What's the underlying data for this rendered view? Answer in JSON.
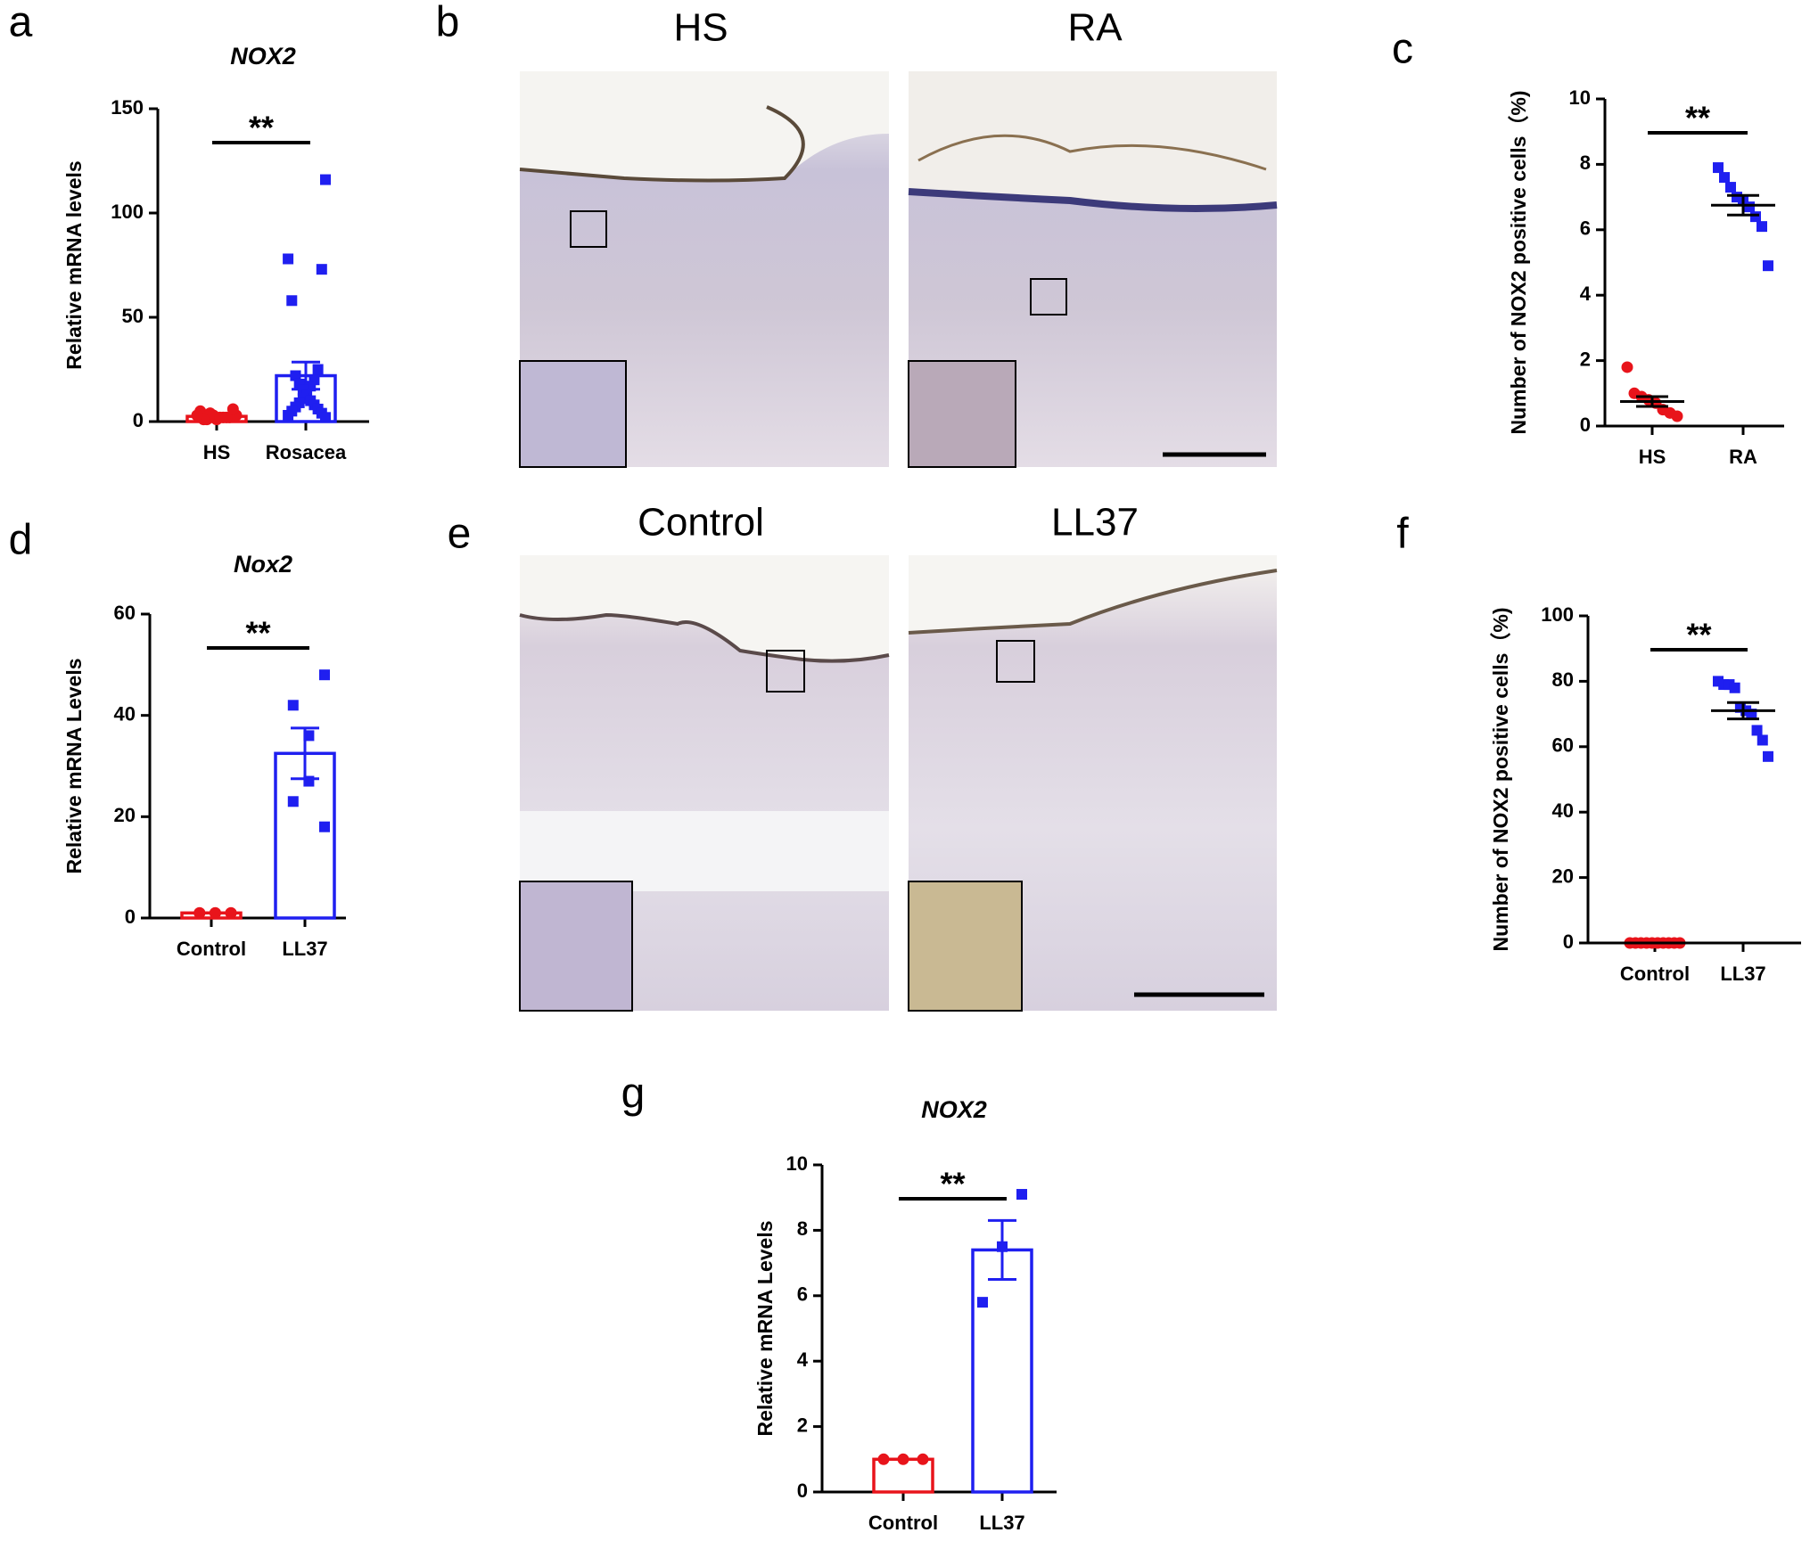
{
  "chart_data": [
    {
      "type": "bar",
      "label": "a",
      "title": "NOX2",
      "y_label": "Relative mRNA levels",
      "annotation": "**",
      "categories": [
        "HS",
        "Rosacea"
      ],
      "groups": [
        {
          "color": "#e8141b",
          "marker": "circle",
          "mean": 2.5,
          "sem": 0.5,
          "points": [
            3,
            5,
            2,
            1,
            2,
            3,
            1,
            2,
            4,
            2,
            1,
            6,
            3
          ]
        },
        {
          "color": "#1f1ff0",
          "marker": "square",
          "mean": 22,
          "sem": 6.5,
          "points": [
            116,
            78,
            73,
            58,
            25,
            22,
            20,
            18,
            17,
            15,
            13,
            12,
            11,
            10,
            9,
            8,
            7,
            6,
            5,
            4,
            3,
            2
          ]
        }
      ],
      "ylim": [
        0,
        150
      ],
      "yticks": [
        0,
        50,
        100,
        150
      ]
    },
    {
      "type": "dot",
      "label": "c",
      "y_label": "Number of NOX2 positive cells（%)",
      "annotation": "**",
      "categories": [
        "HS",
        "RA"
      ],
      "groups": [
        {
          "color": "#e8141b",
          "marker": "circle",
          "mean": 0.75,
          "sem": 0.15,
          "points": [
            1.8,
            1.0,
            0.9,
            0.8,
            0.7,
            0.5,
            0.4,
            0.3
          ]
        },
        {
          "color": "#1f1ff0",
          "marker": "square",
          "mean": 6.75,
          "sem": 0.3,
          "points": [
            7.9,
            7.6,
            7.3,
            7.0,
            6.9,
            6.7,
            6.4,
            6.1,
            4.9
          ]
        }
      ],
      "ylim": [
        0,
        10
      ],
      "yticks": [
        0,
        2,
        4,
        6,
        8,
        10
      ]
    },
    {
      "type": "bar",
      "label": "d",
      "title": "Nox2",
      "y_label": "Relative mRNA Levels",
      "annotation": "**",
      "categories": [
        "Control",
        "LL37"
      ],
      "groups": [
        {
          "color": "#e8141b",
          "marker": "circle",
          "mean": 1,
          "sem": 0,
          "points": [
            1,
            1,
            1,
            1,
            1,
            1
          ]
        },
        {
          "color": "#1f1ff0",
          "marker": "square",
          "mean": 32.5,
          "sem": 5,
          "points": [
            48,
            42,
            36,
            27,
            23,
            18
          ]
        }
      ],
      "ylim": [
        0,
        60
      ],
      "yticks": [
        0,
        20,
        40,
        60
      ]
    },
    {
      "type": "dot",
      "label": "f",
      "y_label": "Number of NOX2 positive cells（%)",
      "annotation": "**",
      "categories": [
        "Control",
        "LL37"
      ],
      "groups": [
        {
          "color": "#e8141b",
          "marker": "circle",
          "mean": 0,
          "sem": 0,
          "points": [
            0,
            0,
            0,
            0,
            0,
            0,
            0,
            0,
            0,
            0
          ]
        },
        {
          "color": "#1f1ff0",
          "marker": "square",
          "mean": 71,
          "sem": 2.5,
          "points": [
            80,
            79,
            79,
            78,
            72,
            71,
            70,
            65,
            62,
            57
          ]
        }
      ],
      "ylim": [
        0,
        100
      ],
      "yticks": [
        0,
        20,
        40,
        60,
        80,
        100
      ]
    },
    {
      "type": "bar",
      "label": "g",
      "title": "NOX2",
      "y_label": "Relative mRNA Levels",
      "annotation": "**",
      "categories": [
        "Control",
        "LL37"
      ],
      "groups": [
        {
          "color": "#e8141b",
          "marker": "circle",
          "mean": 1,
          "sem": 0,
          "points": [
            1,
            1,
            1
          ]
        },
        {
          "color": "#1f1ff0",
          "marker": "square",
          "mean": 7.4,
          "sem": 0.9,
          "points": [
            9.1,
            7.5,
            5.8
          ]
        }
      ],
      "ylim": [
        0,
        10
      ],
      "yticks": [
        0,
        2,
        4,
        6,
        8,
        10
      ]
    }
  ],
  "image_panels": [
    {
      "label": "b",
      "images": [
        "HS",
        "RA"
      ]
    },
    {
      "label": "e",
      "images": [
        "Control",
        "LL37"
      ]
    }
  ]
}
